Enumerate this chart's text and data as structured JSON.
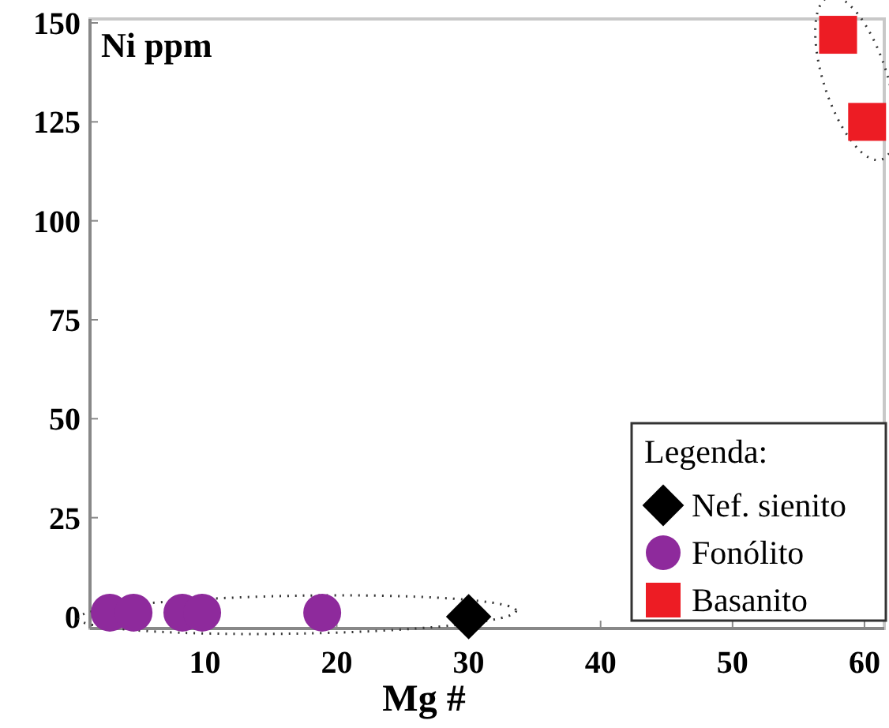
{
  "chart_data": {
    "type": "scatter",
    "title": "Ni ppm",
    "xlabel": "Mg #",
    "legend_title": "Legenda:",
    "legend": "bottom right",
    "grid": false,
    "xlim": [
      1.3,
      61.5
    ],
    "xticks": [
      10,
      20,
      30,
      40,
      50,
      60
    ],
    "ylim": [
      -3,
      151
    ],
    "yticks": [
      0,
      25,
      50,
      75,
      100,
      125,
      150
    ],
    "series": [
      {
        "name": "Nef. sienito",
        "color": "#000000",
        "marker": "diamond",
        "x": [
          30
        ],
        "values": [
          0
        ]
      },
      {
        "name": "Fonólito",
        "color": "#8e2a9c",
        "marker": "circle",
        "x": [
          2.8,
          4.6,
          8.3,
          9.8,
          18.9
        ],
        "values": [
          1,
          1,
          1,
          1,
          1
        ]
      },
      {
        "name": "Basanito",
        "color": "#ed1c24",
        "marker": "square",
        "x": [
          58,
          60.2
        ],
        "values": [
          147,
          125
        ]
      }
    ]
  }
}
